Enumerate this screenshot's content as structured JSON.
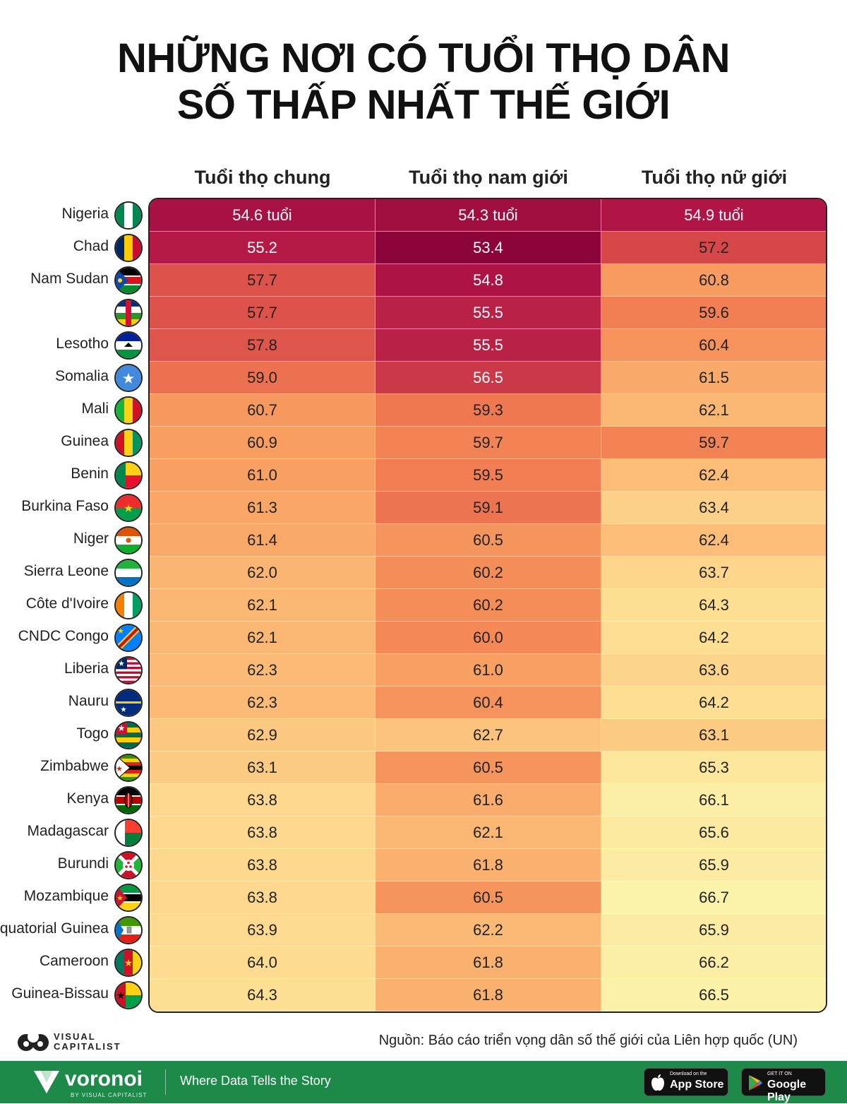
{
  "title": {
    "line1": "NHỮNG NƠI CÓ TUỔI THỌ DÂN",
    "line2": "SỐ THẤP NHẤT THẾ GIỚI"
  },
  "columns": {
    "overall": "Tuổi thọ chung",
    "male": "Tuổi thọ nam giới",
    "female": "Tuổi thọ nữ giới"
  },
  "first_row_labels": {
    "overall": "54.6 tuổi",
    "male": "54.3 tuổi",
    "female": "54.9 tuổi"
  },
  "rows": [
    {
      "country": "Nigeria",
      "flag": "nigeria-flag",
      "overall": "54.6",
      "male": "54.3",
      "female": "54.9"
    },
    {
      "country": "Chad",
      "flag": "chad-flag",
      "overall": "55.2",
      "male": "53.4",
      "female": "57.2"
    },
    {
      "country": "Nam Sudan",
      "flag": "south-sudan-flag",
      "overall": "57.7",
      "male": "54.8",
      "female": "60.8"
    },
    {
      "country": "",
      "flag": "central-african-republic-flag",
      "overall": "57.7",
      "male": "55.5",
      "female": "59.6"
    },
    {
      "country": "Lesotho",
      "flag": "lesotho-flag",
      "overall": "57.8",
      "male": "55.5",
      "female": "60.4"
    },
    {
      "country": "Somalia",
      "flag": "somalia-flag",
      "overall": "59.0",
      "male": "56.5",
      "female": "61.5"
    },
    {
      "country": "Mali",
      "flag": "mali-flag",
      "overall": "60.7",
      "male": "59.3",
      "female": "62.1"
    },
    {
      "country": "Guinea",
      "flag": "guinea-flag",
      "overall": "60.9",
      "male": "59.7",
      "female": "59.7"
    },
    {
      "country": "Benin",
      "flag": "benin-flag",
      "overall": "61.0",
      "male": "59.5",
      "female": "62.4"
    },
    {
      "country": "Burkina Faso",
      "flag": "burkina-faso-flag",
      "overall": "61.3",
      "male": "59.1",
      "female": "63.4"
    },
    {
      "country": "Niger",
      "flag": "niger-flag",
      "overall": "61.4",
      "male": "60.5",
      "female": "62.4"
    },
    {
      "country": "Sierra Leone",
      "flag": "sierra-leone-flag",
      "overall": "62.0",
      "male": "60.2",
      "female": "63.7"
    },
    {
      "country": "Côte d'Ivoire",
      "flag": "cote-divoire-flag",
      "overall": "62.1",
      "male": "60.2",
      "female": "64.3"
    },
    {
      "country": "CNDC Congo",
      "flag": "dr-congo-flag",
      "overall": "62.1",
      "male": "60.0",
      "female": "64.2"
    },
    {
      "country": "Liberia",
      "flag": "liberia-flag",
      "overall": "62.3",
      "male": "61.0",
      "female": "63.6"
    },
    {
      "country": "Nauru",
      "flag": "nauru-flag",
      "overall": "62.3",
      "male": "60.4",
      "female": "64.2"
    },
    {
      "country": "Togo",
      "flag": "togo-flag",
      "overall": "62.9",
      "male": "62.7",
      "female": "63.1"
    },
    {
      "country": "Zimbabwe",
      "flag": "zimbabwe-flag",
      "overall": "63.1",
      "male": "60.5",
      "female": "65.3"
    },
    {
      "country": "Kenya",
      "flag": "kenya-flag",
      "overall": "63.8",
      "male": "61.6",
      "female": "66.1"
    },
    {
      "country": "Madagascar",
      "flag": "madagascar-flag",
      "overall": "63.8",
      "male": "62.1",
      "female": "65.6"
    },
    {
      "country": "Burundi",
      "flag": "burundi-flag",
      "overall": "63.8",
      "male": "61.8",
      "female": "65.9"
    },
    {
      "country": "Mozambique",
      "flag": "mozambique-flag",
      "overall": "63.8",
      "male": "60.5",
      "female": "66.7"
    },
    {
      "country": "Equatorial Guinea",
      "flag": "equatorial-guinea-flag",
      "overall": "63.9",
      "male": "62.2",
      "female": "65.9"
    },
    {
      "country": "Cameroon",
      "flag": "cameroon-flag",
      "overall": "64.0",
      "male": "61.8",
      "female": "66.2"
    },
    {
      "country": "Guinea-Bissau",
      "flag": "guinea-bissau-flag",
      "overall": "64.3",
      "male": "61.8",
      "female": "66.5"
    }
  ],
  "chart_data": {
    "type": "table",
    "title": "NHỮNG NƠI CÓ TUỔI THỌ DÂN SỐ THẤP NHẤT THẾ GIỚI",
    "columns": [
      "Tuổi thọ chung",
      "Tuổi thọ nam giới",
      "Tuổi thọ nữ giới"
    ],
    "unit": "tuổi",
    "color_scale": {
      "min_value": 53.4,
      "max_value": 66.7,
      "low_color": "#9b0a3c",
      "high_color": "#fcf3a8"
    }
  },
  "source": "Nguồn: Báo cáo triển vọng dân số thế giới của Liên hợp quốc (UN)",
  "branding": {
    "vc_line1": "VISUAL",
    "vc_line2": "CAPITALIST",
    "voronoi": "voronoi",
    "voronoi_sub": "BY VISUAL CAPITALIST",
    "tagline": "Where Data Tells the Story",
    "appstore_small": "Download on the",
    "appstore_big": "App Store",
    "googleplay_small": "GET IT ON",
    "googleplay_big": "Google Play"
  },
  "colors": {
    "footer": "#1d8a4a"
  }
}
